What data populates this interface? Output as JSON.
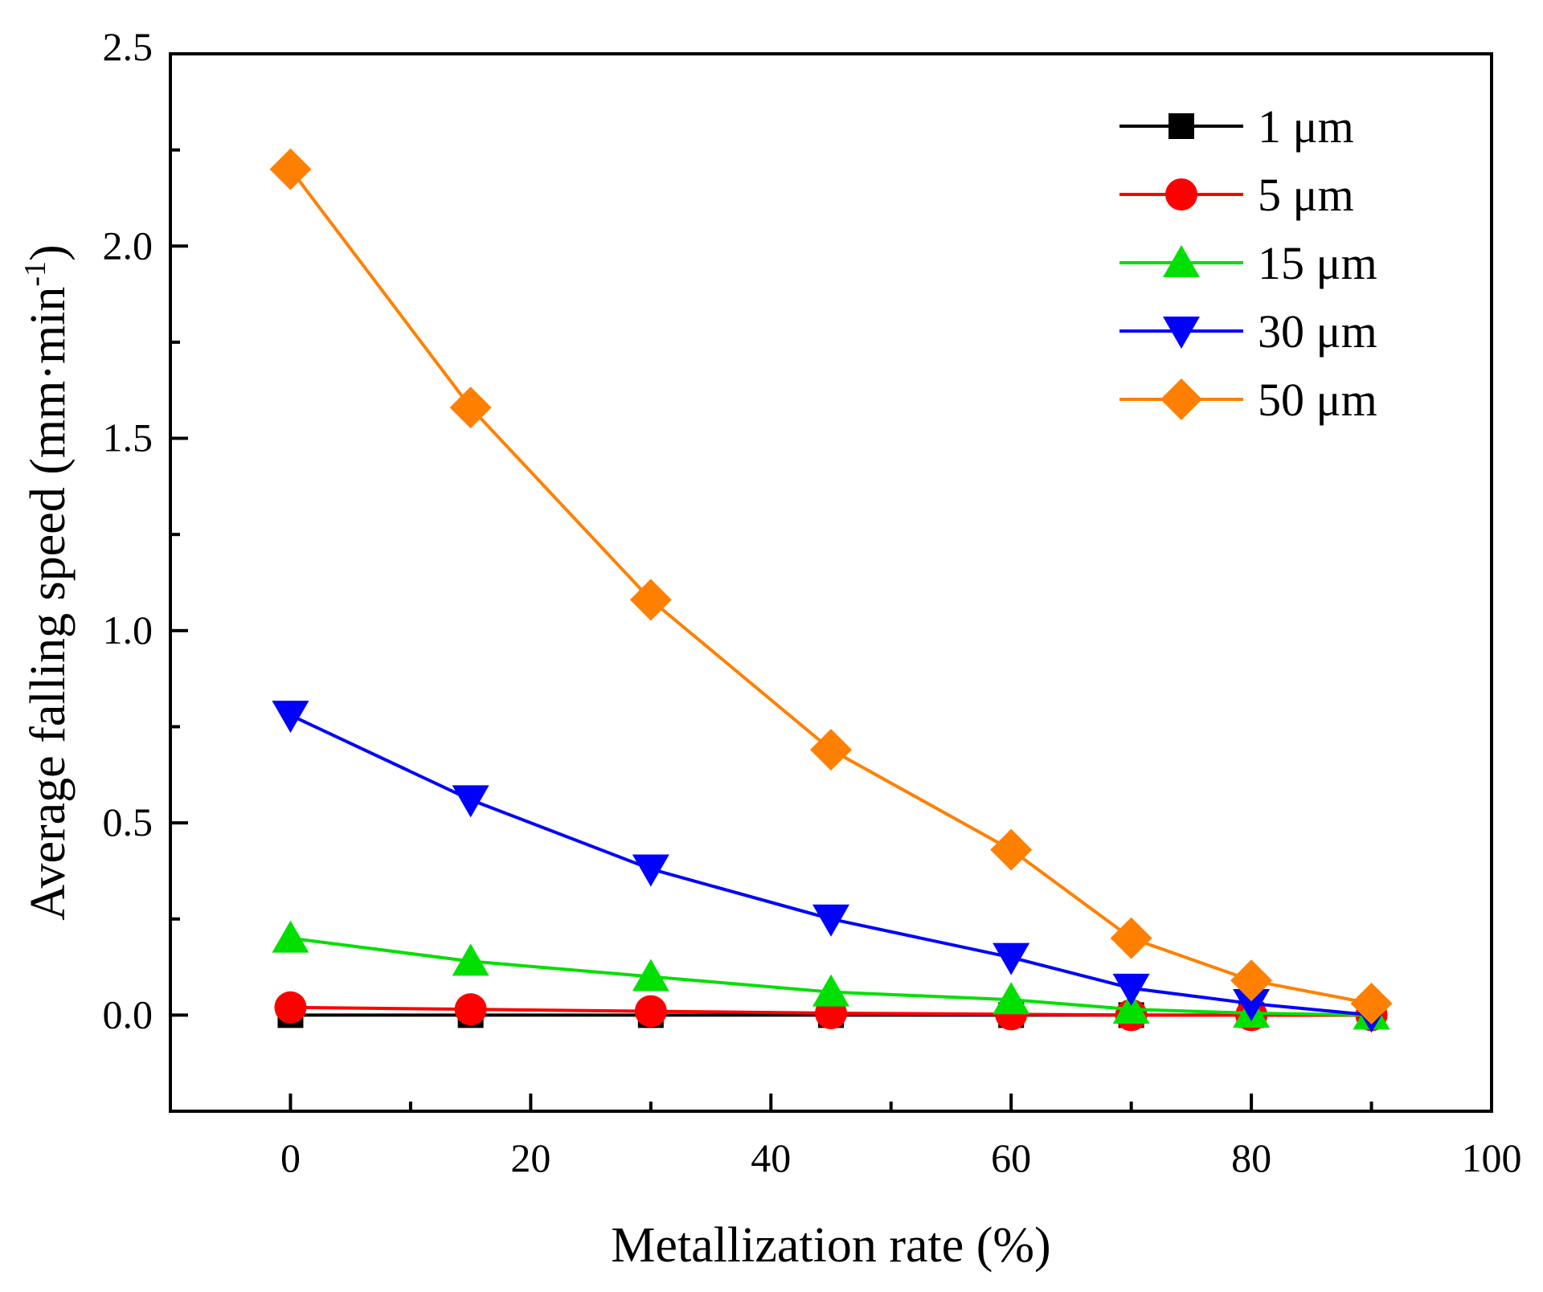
{
  "chart_data": {
    "type": "line",
    "title": "",
    "xlabel": "Metallization rate (%)",
    "ylabel_main": "Average falling speed (mm·min",
    "ylabel_sup": "-1",
    "ylabel_close": ")",
    "xlim": [
      -10,
      100
    ],
    "ylim": [
      -0.25,
      2.5
    ],
    "xticks": [
      0,
      20,
      40,
      60,
      80,
      100
    ],
    "xtick_labels": [
      "0",
      "20",
      "40",
      "60",
      "80",
      "100"
    ],
    "xminor": [
      10,
      30,
      50,
      70,
      90
    ],
    "yticks": [
      0,
      0.5,
      1.0,
      1.5,
      2.0,
      2.5
    ],
    "ytick_labels": [
      "0.0",
      "0.5",
      "1.0",
      "1.5",
      "2.0",
      "2.5"
    ],
    "yminor": [
      -0.25,
      0.25,
      0.75,
      1.25,
      1.75,
      2.25
    ],
    "grid": false,
    "legend_position": "top-right",
    "x": [
      0,
      15,
      30,
      45,
      60,
      70,
      80,
      90
    ],
    "series": [
      {
        "name": "1 μm",
        "color": "#000000",
        "marker": "square",
        "values": [
          0,
          0,
          0,
          0,
          0,
          0,
          0,
          0
        ]
      },
      {
        "name": "5 μm",
        "color": "#ff0000",
        "marker": "circle",
        "values": [
          0.02,
          0.015,
          0.01,
          0.005,
          0.002,
          0,
          0,
          0
        ]
      },
      {
        "name": "15 μm",
        "color": "#00e000",
        "marker": "triangle-up",
        "values": [
          0.2,
          0.14,
          0.1,
          0.06,
          0.04,
          0.015,
          0.005,
          0
        ]
      },
      {
        "name": "30 μm",
        "color": "#0000ff",
        "marker": "triangle-down",
        "values": [
          0.78,
          0.56,
          0.38,
          0.25,
          0.15,
          0.07,
          0.03,
          0.0
        ]
      },
      {
        "name": "50 μm",
        "color": "#ff8000",
        "marker": "diamond",
        "values": [
          2.2,
          1.58,
          1.08,
          0.69,
          0.43,
          0.2,
          0.09,
          0.03
        ]
      }
    ]
  }
}
